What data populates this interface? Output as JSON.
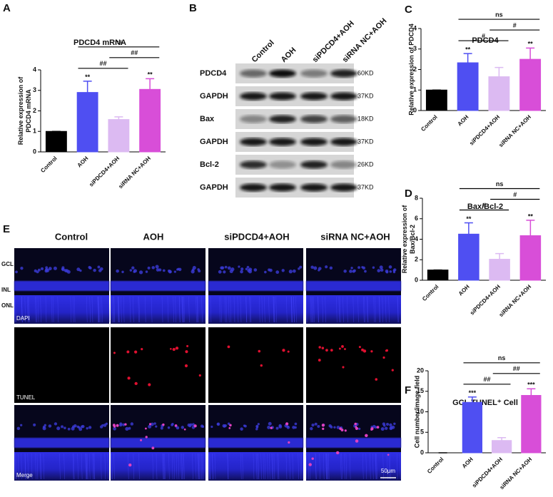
{
  "panel_letters": [
    "A",
    "B",
    "C",
    "D",
    "E",
    "F"
  ],
  "chart_data": [
    {
      "type": "bar",
      "title": "PDCD4 mRNA",
      "ylabel": [
        "Relative expression of",
        "PDCD4 mRNA"
      ],
      "categories": [
        "Control",
        "AOH",
        "siPDCD4+AOH",
        "siRNA NC+AOH"
      ],
      "values": [
        1.0,
        2.9,
        1.58,
        3.05
      ],
      "errors": [
        0,
        0.55,
        0.13,
        0.52
      ],
      "colors": [
        "#000000",
        "#4f4ff2",
        "#dcbaf2",
        "#d84ed8"
      ],
      "stars": [
        null,
        "**",
        null,
        "**"
      ],
      "brackets": [
        {
          "label": "##",
          "pair": [
            1,
            2
          ]
        },
        {
          "label": "##",
          "pair": [
            2,
            3
          ]
        },
        {
          "label": "ns",
          "pair": [
            1,
            3
          ]
        }
      ],
      "ylim": [
        0,
        4
      ],
      "yticks": [
        0,
        1,
        2,
        3,
        4
      ]
    },
    {
      "type": "bar",
      "title": "PDCD4",
      "ylabel": [
        "Relative expression of  PDCD4"
      ],
      "categories": [
        "Control",
        "AOH",
        "siPDCD4+AOH",
        "siRNA NC+AOH"
      ],
      "values": [
        1.0,
        2.33,
        1.65,
        2.5
      ],
      "errors": [
        0,
        0.45,
        0.45,
        0.55
      ],
      "colors": [
        "#000000",
        "#4f4ff2",
        "#dcbaf2",
        "#d84ed8"
      ],
      "stars": [
        null,
        "**",
        null,
        "**"
      ],
      "brackets": [
        {
          "label": "#",
          "pair": [
            1,
            2
          ]
        },
        {
          "label": "#",
          "pair": [
            2,
            3
          ]
        },
        {
          "label": "ns",
          "pair": [
            1,
            3
          ]
        }
      ],
      "ylim": [
        0,
        4
      ],
      "yticks": [
        0,
        1,
        2,
        3,
        4
      ]
    },
    {
      "type": "bar",
      "title": "Bax/Bcl-2",
      "ylabel": [
        "Relative expression of",
        "Bax/Bcl-2"
      ],
      "categories": [
        "Control",
        "AOH",
        "siPDCD4+AOH",
        "siRNA NC+AOH"
      ],
      "values": [
        1.0,
        4.5,
        2.05,
        4.35
      ],
      "errors": [
        0,
        1.1,
        0.55,
        1.5
      ],
      "colors": [
        "#000000",
        "#4f4ff2",
        "#dcbaf2",
        "#d84ed8"
      ],
      "stars": [
        null,
        "**",
        null,
        "**"
      ],
      "brackets": [
        {
          "label": "#",
          "pair": [
            1,
            2
          ]
        },
        {
          "label": "#",
          "pair": [
            2,
            3
          ]
        },
        {
          "label": "ns",
          "pair": [
            1,
            3
          ]
        }
      ],
      "ylim": [
        0,
        8
      ],
      "yticks": [
        0,
        2,
        4,
        6,
        8
      ]
    },
    {
      "type": "bar",
      "title": "GCL TUNEL⁺ Cell",
      "ylabel": [
        "Cell number/image field"
      ],
      "categories": [
        "Control",
        "AOH",
        "siPDCD4+AOH",
        "siRNA NC+AOH"
      ],
      "values": [
        0,
        12.3,
        3.0,
        14.0
      ],
      "errors": [
        0,
        1.3,
        0.7,
        1.6
      ],
      "colors": [
        "#000000",
        "#4f4ff2",
        "#dcbaf2",
        "#d84ed8"
      ],
      "stars": [
        null,
        "***",
        null,
        "***"
      ],
      "brackets": [
        {
          "label": "##",
          "pair": [
            1,
            2
          ]
        },
        {
          "label": "##",
          "pair": [
            2,
            3
          ]
        },
        {
          "label": "ns",
          "pair": [
            1,
            3
          ]
        }
      ],
      "ylim": [
        0,
        20
      ],
      "yticks": [
        0,
        5,
        10,
        15,
        20
      ]
    }
  ],
  "blot": {
    "lanes": [
      "Control",
      "AOH",
      "siPDCD4+AOH",
      "siRNA NC+AOH"
    ],
    "rows": [
      {
        "protein": "PDCD4",
        "size": "60KD"
      },
      {
        "protein": "GAPDH",
        "size": "37KD"
      },
      {
        "protein": "Bax",
        "size": "18KD"
      },
      {
        "protein": "GAPDH",
        "size": "37KD"
      },
      {
        "protein": "Bcl-2",
        "size": "26KD"
      },
      {
        "protein": "GAPDH",
        "size": "37KD"
      }
    ]
  },
  "imaging": {
    "conditions": [
      "Control",
      "AOH",
      "siPDCD4+AOH",
      "siRNA NC+AOH"
    ],
    "channels": [
      "DAPI",
      "TUNEL",
      "Merge"
    ],
    "layers": [
      "GCL",
      "INL",
      "ONL"
    ],
    "scale_bar": "50μm"
  }
}
